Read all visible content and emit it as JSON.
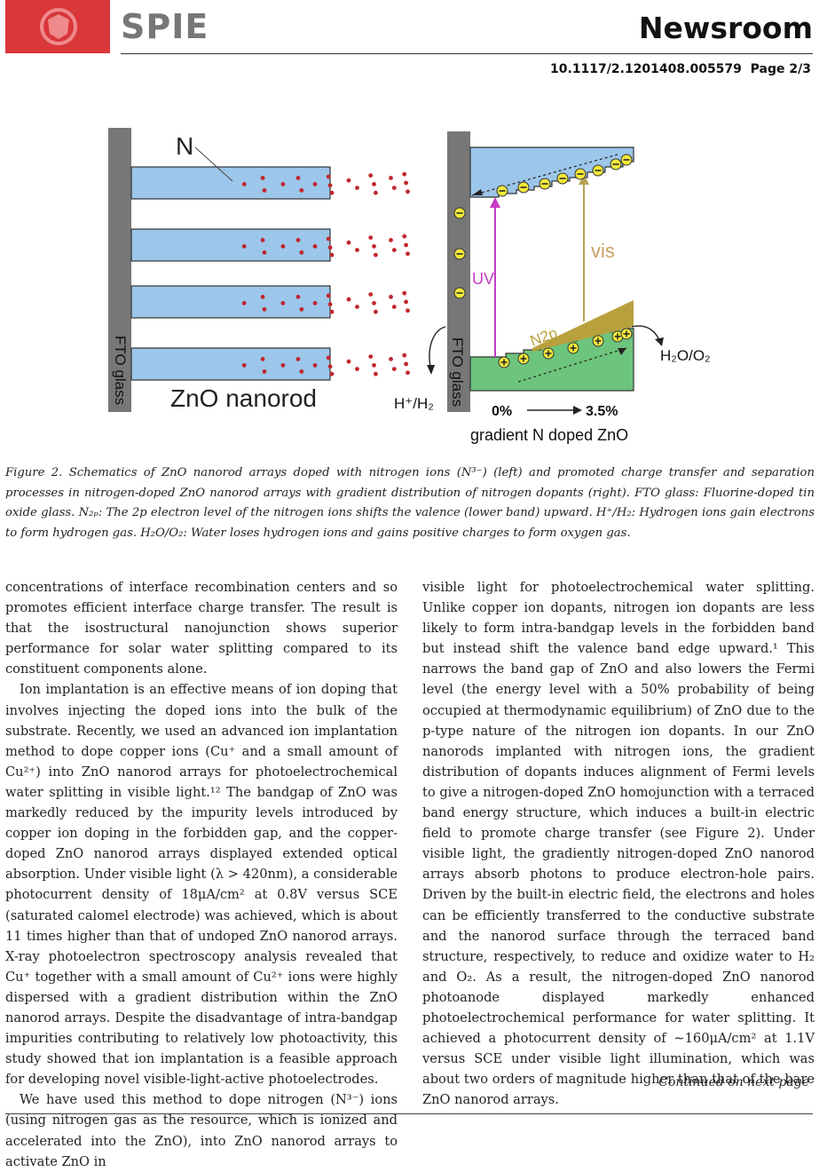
{
  "header": {
    "brand": "SPIE",
    "section": "Newsroom",
    "doi": "10.1117/2.1201408.005579",
    "page": "Page 2/3"
  },
  "figure": {
    "left": {
      "label_n": "N",
      "substrate_label": "FTO glass",
      "nanorod_label": "ZnO nanorod"
    },
    "right": {
      "substrate_label": "FTO glass",
      "uv_label": "UV",
      "vis_label": "vis",
      "n2p_label": "N2p",
      "h_label": "H⁺/H₂",
      "h2o_label": "H₂O/O₂",
      "grad_start": "0%",
      "grad_end": "3.5%",
      "bottom_label": "gradient N doped ZnO"
    },
    "colors": {
      "rod": "#9cc6ea",
      "dot": "#c0262d",
      "glass": "#777777",
      "valence": "#6dc47c",
      "n2p": "#b8a13c",
      "uv": "#c43cc4",
      "vis": "#b8a05a"
    }
  },
  "caption": {
    "label": "Figure 2.",
    "text": "Schematics of ZnO nanorod arrays doped with nitrogen ions (N³⁻) (left) and promoted charge transfer and separation processes in nitrogen-doped ZnO nanorod arrays with gradient distribution of nitrogen dopants (right). FTO glass: Fluorine-doped tin oxide glass. N₂ₚ: The 2p electron level of the nitrogen ions shifts the valence (lower band) upward. H⁺/H₂: Hydrogen ions gain electrons to form hydrogen gas. H₂O/O₂: Water loses hydrogen ions and gains positive charges to form oxygen gas."
  },
  "body": {
    "left_p1": "concentrations of interface recombination centers and so promotes efficient interface charge transfer. The result is that the isostructural nanojunction shows superior performance for solar water splitting compared to its constituent components alone.",
    "left_p2": "Ion implantation is an effective means of ion doping that involves injecting the doped ions into the bulk of the substrate. Recently, we used an advanced ion implantation method to dope copper ions (Cu⁺ and a small amount of Cu²⁺) into ZnO nanorod arrays for photoelectrochemical water splitting in visible light.¹² The bandgap of ZnO was markedly reduced by the impurity levels introduced by copper ion doping in the forbidden gap, and the copper-doped ZnO nanorod arrays displayed extended optical absorption. Under visible light (λ > 420nm), a considerable photocurrent density of 18μA/cm² at 0.8V versus SCE (saturated calomel electrode) was achieved, which is about 11 times higher than that of undoped ZnO nanorod arrays. X-ray photoelectron spectroscopy analysis revealed that Cu⁺ together with a small amount of Cu²⁺ ions were highly dispersed with a gradient distribution within the ZnO nanorod arrays. Despite the disadvantage of intra-bandgap impurities contributing to relatively low photoactivity, this study showed that ion implantation is a feasible approach for developing novel visible-light-active photoelectrodes.",
    "left_p3": "We have used this method to dope nitrogen (N³⁻) ions (using nitrogen gas as the resource, which is ionized and accelerated into the ZnO), into ZnO nanorod arrays to activate ZnO in",
    "right_p1": "visible light for photoelectrochemical water splitting. Unlike copper ion dopants, nitrogen ion dopants are less likely to form intra-bandgap levels in the forbidden band but instead shift the valence band edge upward.¹ This narrows the band gap of ZnO and also lowers the Fermi level (the energy level with a 50% probability of being occupied at thermodynamic equilibrium) of ZnO due to the p-type nature of the nitrogen ion dopants. In our ZnO nanorods implanted with nitrogen ions, the gradient distribution of dopants induces alignment of Fermi levels to give a nitrogen-doped ZnO homojunction with a terraced band energy structure, which induces a built-in electric field to promote charge transfer (see Figure 2). Under visible light, the gradiently nitrogen-doped ZnO nanorod arrays absorb photons to produce electron-hole pairs. Driven by the built-in electric field, the electrons and holes can be efficiently transferred to the conductive substrate and the nanorod surface through the terraced band structure, respectively, to reduce and oxidize water to H₂ and O₂. As a result, the nitrogen-doped ZnO nanorod photoanode displayed markedly enhanced photoelectrochemical performance for water splitting. It achieved a photocurrent density of ∼160μA/cm² at 1.1V versus SCE under visible light illumination, which was about two orders of magnitude higher than that of the bare ZnO nanorod arrays."
  },
  "footer": {
    "continued": "Continued on next page"
  }
}
